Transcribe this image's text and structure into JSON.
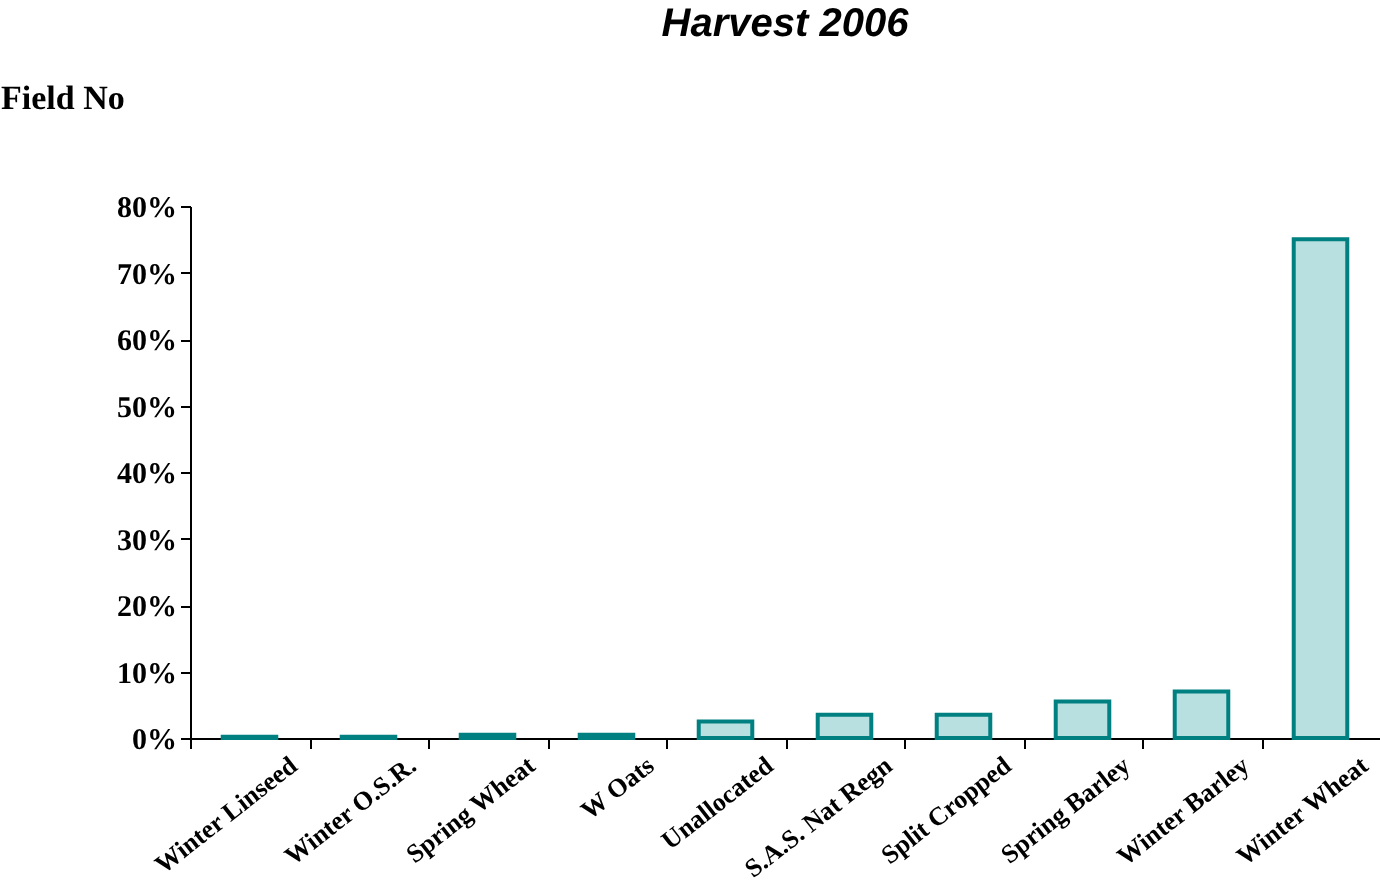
{
  "chart_data": {
    "type": "bar",
    "title": "Harvest 2006",
    "ylabel": "Field No",
    "categories": [
      "Winter Linseed",
      "Winter O.S.R.",
      "Spring Wheat",
      "W Oats",
      "Unallocated",
      "S.A.S. Nat Regn",
      "Split Cropped",
      "Spring Barley",
      "Winter Barley",
      "Winter Wheat"
    ],
    "values": [
      0.2,
      0.2,
      0.5,
      0.5,
      2.5,
      3.5,
      3.5,
      5.5,
      7.0,
      75
    ],
    "color": "#b9e0e0",
    "ylim": [
      0,
      80
    ],
    "yticks": [
      {
        "value": 0,
        "label": "0%"
      },
      {
        "value": 10,
        "label": "10%"
      },
      {
        "value": 20,
        "label": "20%"
      },
      {
        "value": 30,
        "label": "30%"
      },
      {
        "value": 40,
        "label": "40%"
      },
      {
        "value": 50,
        "label": "50%"
      },
      {
        "value": 60,
        "label": "60%"
      },
      {
        "value": 70,
        "label": "70%"
      },
      {
        "value": 80,
        "label": "80%"
      }
    ],
    "grid": false
  }
}
